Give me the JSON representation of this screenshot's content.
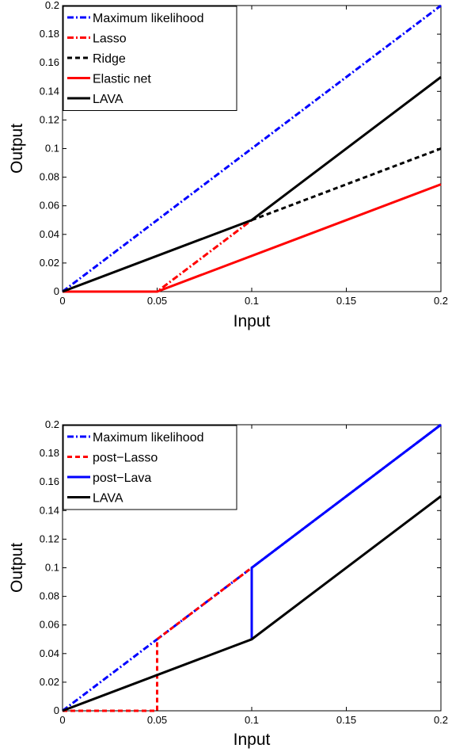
{
  "chart_data": [
    {
      "type": "line",
      "xlabel": "Input",
      "ylabel": "Output",
      "xlim": [
        0,
        0.2
      ],
      "ylim": [
        0,
        0.2
      ],
      "xticks": [
        "0",
        "0.05",
        "0.1",
        "0.15",
        "0.2"
      ],
      "yticks": [
        "0",
        "0.02",
        "0.04",
        "0.06",
        "0.08",
        "0.1",
        "0.12",
        "0.14",
        "0.16",
        "0.18",
        "0.2"
      ],
      "grid": false,
      "legend_position": "top-left",
      "series": [
        {
          "name": "Maximum likelihood",
          "color": "#0000ff",
          "style": "dashdot",
          "x": [
            0,
            0.2
          ],
          "y": [
            0,
            0.2
          ]
        },
        {
          "name": "Lasso",
          "color": "#ff0000",
          "style": "dashdot",
          "x": [
            0,
            0.05,
            0.1
          ],
          "y": [
            0,
            0,
            0.05
          ]
        },
        {
          "name": "Ridge",
          "color": "#000000",
          "style": "dashed",
          "x": [
            0.1,
            0.2
          ],
          "y": [
            0.05,
            0.1
          ]
        },
        {
          "name": "Elastic net",
          "color": "#ff0000",
          "style": "solid",
          "x": [
            0,
            0.05,
            0.2
          ],
          "y": [
            0,
            0,
            0.075
          ]
        },
        {
          "name": "LAVA",
          "color": "#000000",
          "style": "solid",
          "x": [
            0,
            0.1,
            0.2
          ],
          "y": [
            0,
            0.05,
            0.15
          ]
        }
      ]
    },
    {
      "type": "line",
      "xlabel": "Input",
      "ylabel": "Output",
      "xlim": [
        0,
        0.2
      ],
      "ylim": [
        0,
        0.2
      ],
      "xticks": [
        "0",
        "0.05",
        "0.1",
        "0.15",
        "0.2"
      ],
      "yticks": [
        "0",
        "0.02",
        "0.04",
        "0.06",
        "0.08",
        "0.1",
        "0.12",
        "0.14",
        "0.16",
        "0.18",
        "0.2"
      ],
      "grid": false,
      "legend_position": "top-left",
      "series": [
        {
          "name": "Maximum likelihood",
          "color": "#0000ff",
          "style": "dashdot",
          "x": [
            0,
            0.2
          ],
          "y": [
            0,
            0.2
          ]
        },
        {
          "name": "post−Lasso",
          "color": "#ff0000",
          "style": "dashed",
          "x": [
            0,
            0.05,
            0.05,
            0.1
          ],
          "y": [
            0,
            0,
            0.05,
            0.1
          ]
        },
        {
          "name": "post−Lava",
          "color": "#0000ff",
          "style": "solid",
          "x": [
            0.1,
            0.1,
            0.2
          ],
          "y": [
            0.05,
            0.1,
            0.2
          ]
        },
        {
          "name": "LAVA",
          "color": "#000000",
          "style": "solid",
          "x": [
            0,
            0.1,
            0.2
          ],
          "y": [
            0,
            0.05,
            0.15
          ]
        }
      ]
    }
  ]
}
